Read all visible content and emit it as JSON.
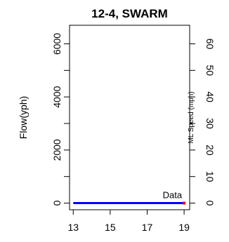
{
  "chart_data": {
    "type": "line",
    "title": "12-4, SWARM",
    "xlabel": "",
    "ylabel": "Flow(yph)",
    "y2label": "ML Speed (mph)",
    "xlim": [
      12.8,
      19.3
    ],
    "ylim": [
      -250,
      6700
    ],
    "y2lim": [
      -2.5,
      67
    ],
    "x_ticks": [
      13,
      15,
      17,
      19
    ],
    "y_ticks": [
      0,
      2000,
      4000,
      6000
    ],
    "y_minor_ticks": [
      1000,
      3000,
      5000
    ],
    "y2_ticks": [
      0,
      10,
      20,
      30,
      40,
      50,
      60
    ],
    "grid": false,
    "series": [
      {
        "name": "Data",
        "color": "#0000ff",
        "x": [
          13,
          19
        ],
        "y": [
          0,
          0
        ]
      }
    ],
    "annotation": {
      "text": "Data",
      "color": "#ff0000",
      "x": 19,
      "y": 0
    },
    "legend": "none"
  }
}
